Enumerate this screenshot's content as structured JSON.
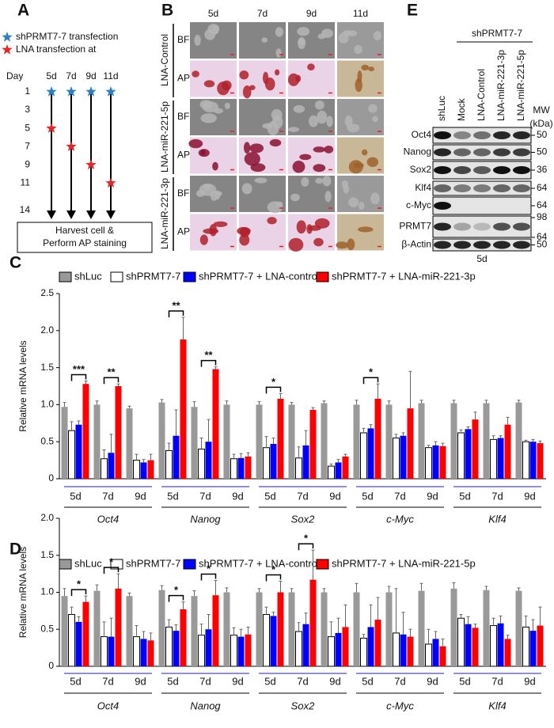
{
  "panel_a": {
    "letter": "A",
    "legend": [
      {
        "label": "shPRMT7-7 transfection",
        "color": "#2b7fc3"
      },
      {
        "label": "LNA transfection at",
        "color": "#e8262a"
      }
    ],
    "day_label": "Day",
    "days": [
      1,
      3,
      5,
      7,
      9,
      11,
      14
    ],
    "transfection_day": 1,
    "timelines": [
      {
        "label": "5d",
        "lna_day": 5
      },
      {
        "label": "7d",
        "lna_day": 7
      },
      {
        "label": "9d",
        "lna_day": 9
      },
      {
        "label": "11d",
        "lna_day": 11
      }
    ],
    "box": [
      "Harvest cell &",
      "Perform AP staining"
    ]
  },
  "panel_b": {
    "letter": "B",
    "columns": [
      "5d",
      "7d",
      "9d",
      "11d"
    ],
    "groups": [
      {
        "label": "LNA-Control",
        "rows": [
          "BF",
          "AP"
        ]
      },
      {
        "label": "LNA-miR-221-5p",
        "rows": [
          "BF",
          "AP"
        ]
      },
      {
        "label": "LNA-miR-221-3p",
        "rows": [
          "BF",
          "AP"
        ]
      }
    ]
  },
  "panel_e": {
    "letter": "E",
    "header": "shPRMT7-7",
    "lanes": [
      "shLuc",
      "Mock",
      "LNA-Control",
      "LNA-miR-221-3p",
      "LNA-miR-221-5p"
    ],
    "mw_label": [
      "MW",
      "(kDa)"
    ],
    "rows": [
      {
        "label": "Oct4",
        "mw": [
          50
        ]
      },
      {
        "label": "Nanog",
        "mw": [
          50
        ]
      },
      {
        "label": "Sox2",
        "mw": [
          36
        ]
      },
      {
        "label": "Klf4",
        "mw": [
          64
        ]
      },
      {
        "label": "c-Myc",
        "mw": [
          64
        ]
      },
      {
        "label": "PRMT7",
        "mw": [
          98,
          64
        ]
      },
      {
        "label": "β-Actin",
        "mw": [
          50
        ]
      }
    ],
    "footer": "5d"
  },
  "chart_data": [
    {
      "type": "bar",
      "panel": "C",
      "y_label": "Relative mRNA levels",
      "ylim": [
        0,
        2.5
      ],
      "yticks": [
        0,
        0.5,
        {
          "value": 1,
          "label": "1.0"
        },
        1.5,
        {
          "value": 2,
          "label": "2.0"
        },
        2.5
      ],
      "groups": [
        "Oct4",
        "Nanog",
        "Sox2",
        "c-Myc",
        "Klf4"
      ],
      "categories": [
        "5d",
        "7d",
        "9d",
        "5d",
        "7d",
        "9d",
        "5d",
        "7d",
        "9d",
        "5d",
        "7d",
        "9d",
        "5d",
        "7d",
        "9d"
      ],
      "series": [
        {
          "name": "shLuc",
          "color": "#999999",
          "values": [
            0.97,
            1.0,
            0.95,
            1.03,
            0.97,
            1.0,
            1.0,
            1.0,
            1.02,
            1.0,
            1.0,
            1.02,
            1.02,
            1.02,
            1.03
          ],
          "errors": [
            0.06,
            0.05,
            0.03,
            0.04,
            0.07,
            0.05,
            0.04,
            0.03,
            0.03,
            0.06,
            0.05,
            0.04,
            0.04,
            0.04,
            0.03
          ]
        },
        {
          "name": "shPRMT7-7",
          "color": "#ffffff",
          "values": [
            0.65,
            0.27,
            0.25,
            0.38,
            0.4,
            0.27,
            0.42,
            0.28,
            0.17,
            0.62,
            0.55,
            0.42,
            0.62,
            0.53,
            0.5
          ],
          "errors": [
            0.12,
            0.12,
            0.08,
            0.1,
            0.15,
            0.06,
            0.15,
            0.15,
            0.03,
            0.06,
            0.05,
            0.03,
            0.04,
            0.05,
            0.02
          ]
        },
        {
          "name": "shPRMT7-7 + LNA-control",
          "color": "#0000ff",
          "values": [
            0.73,
            0.35,
            0.22,
            0.58,
            0.5,
            0.28,
            0.47,
            0.45,
            0.22,
            0.68,
            0.58,
            0.45,
            0.67,
            0.55,
            0.5
          ],
          "errors": [
            0.05,
            0.25,
            0.04,
            0.35,
            0.3,
            0.06,
            0.08,
            0.2,
            0.04,
            0.05,
            0.04,
            0.05,
            0.03,
            0.03,
            0.03
          ]
        },
        {
          "name": "shPRMT7-7 + LNA-miR-221-3p",
          "color": "#ff0000",
          "values": [
            1.28,
            1.25,
            0.25,
            1.88,
            1.48,
            0.3,
            1.08,
            0.93,
            0.3,
            1.08,
            0.95,
            0.44,
            0.8,
            0.73,
            0.48
          ],
          "errors": [
            0.04,
            0.03,
            0.08,
            0.3,
            0.03,
            0.05,
            0.07,
            0.03,
            0.03,
            0.2,
            0.5,
            0.04,
            0.1,
            0.1,
            0.03
          ]
        }
      ],
      "significance": [
        "***",
        "**",
        null,
        "**",
        "**",
        null,
        "*",
        null,
        null,
        "*",
        null,
        null,
        null,
        null,
        null
      ]
    },
    {
      "type": "bar",
      "panel": "D",
      "y_label": "Relative mRNA levels",
      "ylim": [
        0,
        2
      ],
      "yticks": [
        0,
        0.5,
        {
          "value": 1,
          "label": "1.0"
        },
        1.5,
        {
          "value": 2,
          "label": "2.0"
        }
      ],
      "groups": [
        "Oct4",
        "Nanog",
        "Sox2",
        "c-Myc",
        "Klf4"
      ],
      "categories": [
        "5d",
        "7d",
        "9d",
        "5d",
        "7d",
        "9d",
        "5d",
        "7d",
        "9d",
        "5d",
        "7d",
        "9d",
        "5d",
        "7d",
        "9d"
      ],
      "series": [
        {
          "name": "shLuc",
          "color": "#999999",
          "values": [
            0.95,
            1.02,
            0.95,
            1.03,
            0.95,
            1.0,
            1.0,
            1.0,
            1.0,
            1.0,
            1.0,
            1.02,
            1.05,
            1.03,
            1.02
          ],
          "errors": [
            0.1,
            0.08,
            0.04,
            0.06,
            0.07,
            0.06,
            0.05,
            0.05,
            0.05,
            0.12,
            0.08,
            0.1,
            0.08,
            0.05,
            0.04
          ]
        },
        {
          "name": "shPRMT7-7",
          "color": "#ffffff",
          "values": [
            0.7,
            0.4,
            0.4,
            0.53,
            0.42,
            0.42,
            0.7,
            0.47,
            0.4,
            0.38,
            0.45,
            0.3,
            0.65,
            0.55,
            0.53
          ],
          "errors": [
            0.1,
            0.2,
            0.15,
            0.1,
            0.15,
            0.1,
            0.1,
            0.12,
            0.2,
            0.05,
            0.6,
            0.2,
            0.05,
            0.1,
            0.15
          ]
        },
        {
          "name": "shPRMT7-7 + LNA-control",
          "color": "#0000ff",
          "values": [
            0.6,
            0.4,
            0.37,
            0.48,
            0.5,
            0.4,
            0.68,
            0.57,
            0.45,
            0.53,
            0.43,
            0.37,
            0.57,
            0.58,
            0.48
          ],
          "errors": [
            0.07,
            0.25,
            0.1,
            0.08,
            0.2,
            0.1,
            0.05,
            0.15,
            0.2,
            0.3,
            0.3,
            0.1,
            0.1,
            0.1,
            0.15
          ]
        },
        {
          "name": "shPRMT7-7 + LNA-miR-221-5p",
          "color": "#ff0000",
          "values": [
            0.87,
            1.05,
            0.35,
            0.77,
            0.96,
            0.43,
            1.0,
            1.17,
            0.53,
            0.63,
            0.4,
            0.27,
            0.52,
            0.37,
            0.55
          ],
          "errors": [
            0.08,
            0.2,
            0.1,
            0.1,
            0.2,
            0.1,
            0.15,
            0.4,
            0.3,
            0.3,
            0.1,
            0.1,
            0.05,
            0.05,
            0.25
          ]
        }
      ],
      "significance": [
        "*",
        "*",
        null,
        "*",
        "*",
        null,
        "*",
        "*",
        null,
        null,
        null,
        null,
        null,
        null,
        null
      ]
    }
  ]
}
